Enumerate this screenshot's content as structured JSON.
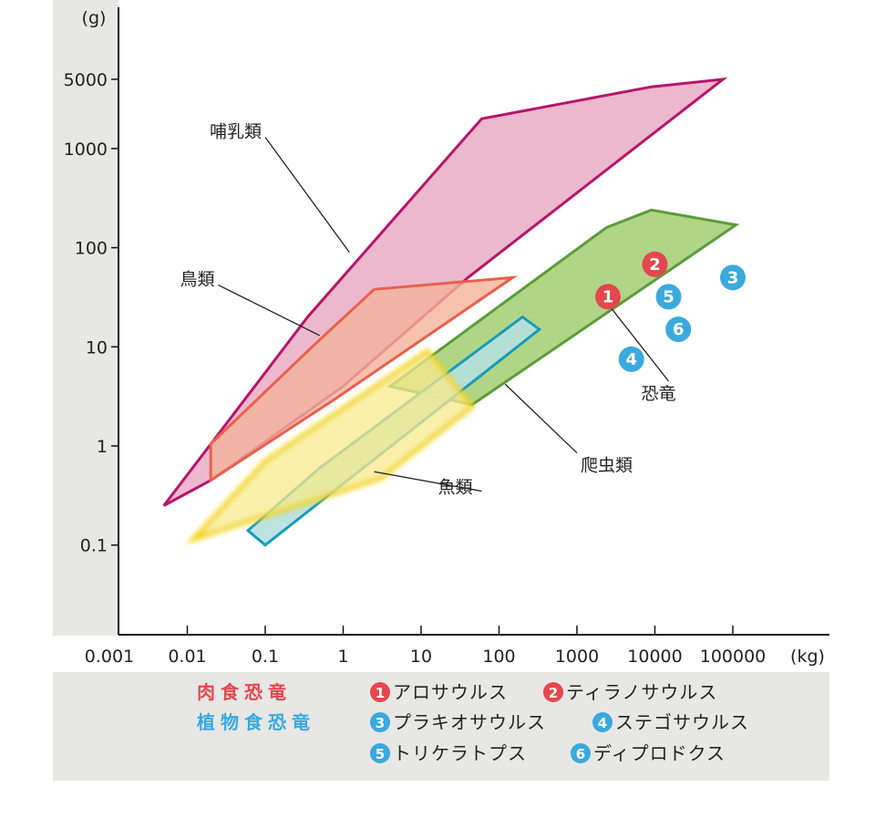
{
  "chart_data": {
    "type": "scatter",
    "scale": "log-log",
    "x_unit": "(kg)",
    "y_unit": "(g)",
    "xlim": [
      0.001,
      1000000
    ],
    "ylim": [
      0.03,
      10000
    ],
    "x_ticks": [
      {
        "value": 0.001,
        "label": "0.001"
      },
      {
        "value": 0.01,
        "label": "0.01"
      },
      {
        "value": 0.1,
        "label": "0.1"
      },
      {
        "value": 1,
        "label": "1"
      },
      {
        "value": 10,
        "label": "10"
      },
      {
        "value": 100,
        "label": "100"
      },
      {
        "value": 1000,
        "label": "1000"
      },
      {
        "value": 10000,
        "label": "10000"
      },
      {
        "value": 100000,
        "label": "100000"
      }
    ],
    "y_ticks": [
      {
        "value": 0.1,
        "label": "0.1"
      },
      {
        "value": 1,
        "label": "1"
      },
      {
        "value": 10,
        "label": "10"
      },
      {
        "value": 100,
        "label": "100"
      },
      {
        "value": 1000,
        "label": "1000"
      },
      {
        "value": 5000,
        "label": "5000"
      }
    ],
    "regions": [
      {
        "id": "mammals",
        "label": "哺乳類",
        "fill": "#eab0c8",
        "stroke": "#b5156c",
        "polygon": [
          [
            0.005,
            0.25
          ],
          [
            0.35,
            20
          ],
          [
            60,
            2000
          ],
          [
            9000,
            4200
          ],
          [
            75000,
            5000
          ],
          [
            40,
            50
          ],
          [
            1,
            4
          ],
          [
            0.02,
            0.45
          ]
        ],
        "label_anchor": [
          0.1,
          1300
        ],
        "leader_to": [
          1.2,
          90
        ]
      },
      {
        "id": "reptiles",
        "label": "爬虫類",
        "fill": "#a8d07a",
        "stroke": "#5a9c3a",
        "polygon": [
          [
            4,
            4
          ],
          [
            2400,
            160
          ],
          [
            9000,
            240
          ],
          [
            110000,
            170
          ],
          [
            45,
            2.6
          ]
        ],
        "label_anchor": [
          1000,
          0.85
        ],
        "leader_to": [
          120,
          4.2
        ]
      },
      {
        "id": "reptiles-small",
        "label": "",
        "fill": "#b6e0de",
        "stroke": "#1a9bbb",
        "polygon": [
          [
            0.06,
            0.14
          ],
          [
            0.1,
            0.1
          ],
          [
            330,
            15
          ],
          [
            200,
            20
          ],
          [
            0.5,
            0.6
          ]
        ]
      },
      {
        "id": "birds",
        "label": "鳥類",
        "fill": "#f4b39a",
        "stroke": "#e8604c",
        "polygon": [
          [
            0.02,
            1.05
          ],
          [
            0.4,
            10
          ],
          [
            2.5,
            38
          ],
          [
            150,
            50
          ],
          [
            0.8,
            3
          ],
          [
            0.02,
            0.45
          ]
        ],
        "label_anchor": [
          0.025,
          42
        ],
        "leader_to": [
          0.5,
          13
        ]
      },
      {
        "id": "fish",
        "label": "魚類",
        "fill": "#f7ea8c",
        "stroke": "#f2d40e",
        "polygon": [
          [
            0.012,
            0.115
          ],
          [
            0.1,
            0.7
          ],
          [
            12,
            9
          ],
          [
            45,
            2.5
          ],
          [
            3,
            0.47
          ]
        ],
        "label_anchor": [
          60,
          0.35
        ],
        "leader_to": [
          2.5,
          0.55
        ]
      }
    ],
    "series": [
      {
        "name": "肉食恐竜",
        "color": "#e4474d",
        "points": [
          {
            "id": "1",
            "name": "アロサウルス",
            "x": 2500,
            "y": 32
          },
          {
            "id": "2",
            "name": "ティラノサウルス",
            "x": 10000,
            "y": 68
          }
        ]
      },
      {
        "name": "植物食恐竜",
        "color": "#3aa9dd",
        "points": [
          {
            "id": "3",
            "name": "ブラキオサウルス",
            "x": 100000,
            "y": 50
          },
          {
            "id": "4",
            "name": "ステゴサウルス",
            "x": 5000,
            "y": 7.5
          },
          {
            "id": "5",
            "name": "トリケラトプス",
            "x": 15000,
            "y": 32
          },
          {
            "id": "6",
            "name": "ディプロドクス",
            "x": 20000,
            "y": 15
          }
        ]
      }
    ],
    "annotations": [
      {
        "label": "恐竜",
        "label_anchor": [
          15000,
          4.5
        ],
        "leader_to": [
          2600,
          26
        ]
      }
    ]
  },
  "legend": {
    "categories": [
      {
        "label": "肉食恐竜",
        "color": "#e4474d"
      },
      {
        "label": "植物食恐竜",
        "color": "#3aa9dd"
      }
    ],
    "entries": [
      {
        "num": "1",
        "name": "アロサウルス",
        "color": "#e4474d"
      },
      {
        "num": "2",
        "name": "ティラノサウルス",
        "color": "#e4474d"
      },
      {
        "num": "3",
        "name": "プラキオサウルス",
        "color": "#3aa9dd"
      },
      {
        "num": "4",
        "name": "ステゴサウルス",
        "color": "#3aa9dd"
      },
      {
        "num": "5",
        "name": "トリケラトプス",
        "color": "#3aa9dd"
      },
      {
        "num": "6",
        "name": "ディプロドクス",
        "color": "#3aa9dd"
      }
    ]
  }
}
